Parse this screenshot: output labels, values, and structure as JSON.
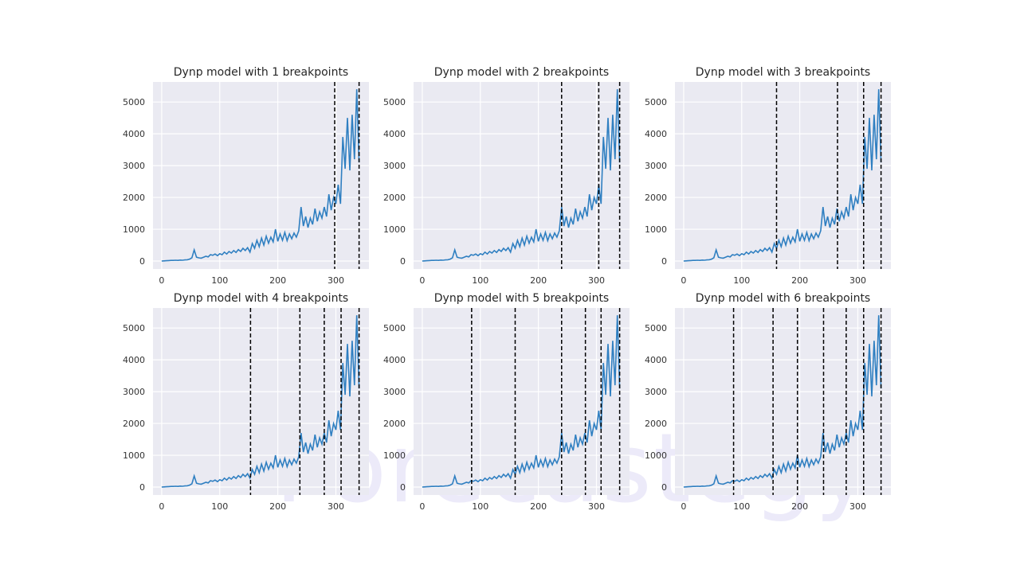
{
  "watermark": "Forecastegy",
  "chart_data": [
    {
      "type": "line",
      "title": "Dynp model with 1 breakpoints",
      "breakpoints": [
        298,
        340
      ]
    },
    {
      "type": "line",
      "title": "Dynp model with 2 breakpoints",
      "breakpoints": [
        240,
        304,
        340
      ]
    },
    {
      "type": "line",
      "title": "Dynp model with 3 breakpoints",
      "breakpoints": [
        160,
        265,
        310,
        340
      ]
    },
    {
      "type": "line",
      "title": "Dynp model with 4 breakpoints",
      "breakpoints": [
        153,
        238,
        280,
        309,
        340
      ]
    },
    {
      "type": "line",
      "title": "Dynp model with 5 breakpoints",
      "breakpoints": [
        85,
        160,
        240,
        281,
        308,
        340
      ]
    },
    {
      "type": "line",
      "title": "Dynp model with 6 breakpoints",
      "breakpoints": [
        86,
        154,
        196,
        241,
        280,
        310,
        340
      ]
    }
  ],
  "shared": {
    "x": [
      0,
      4,
      8,
      12,
      16,
      20,
      24,
      28,
      32,
      36,
      40,
      44,
      48,
      52,
      56,
      60,
      64,
      68,
      72,
      76,
      80,
      84,
      88,
      92,
      96,
      100,
      104,
      108,
      112,
      116,
      120,
      124,
      128,
      132,
      136,
      140,
      144,
      148,
      152,
      156,
      160,
      164,
      168,
      172,
      176,
      180,
      184,
      188,
      192,
      196,
      200,
      204,
      208,
      212,
      216,
      220,
      224,
      228,
      232,
      236,
      240,
      244,
      248,
      252,
      256,
      260,
      264,
      268,
      272,
      276,
      280,
      284,
      288,
      292,
      296,
      300,
      304,
      308,
      312,
      316,
      320,
      324,
      328,
      332,
      336,
      340
    ],
    "y": [
      0,
      5,
      10,
      15,
      20,
      20,
      25,
      20,
      30,
      25,
      35,
      40,
      60,
      100,
      350,
      120,
      100,
      90,
      120,
      150,
      130,
      200,
      180,
      220,
      170,
      230,
      200,
      280,
      220,
      300,
      250,
      330,
      270,
      360,
      300,
      400,
      330,
      420,
      280,
      550,
      400,
      650,
      450,
      720,
      500,
      780,
      560,
      750,
      600,
      1000,
      620,
      850,
      650,
      900,
      640,
      850,
      700,
      880,
      750,
      950,
      1700,
      1100,
      1400,
      1050,
      1350,
      1150,
      1650,
      1250,
      1550,
      1350,
      1700,
      1400,
      2100,
      1600,
      2000,
      1800,
      2400,
      1800,
      3900,
      2900,
      4500,
      2850,
      4600,
      3200,
      5400,
      3100
    ],
    "xticks": [
      0,
      100,
      200,
      300
    ],
    "yticks": [
      0,
      1000,
      2000,
      3000,
      4000,
      5000
    ],
    "xlim": [
      -15,
      357
    ],
    "ylim": [
      -250,
      5630
    ],
    "grid": true,
    "line_color": "#2f7fc1",
    "breakpoint_color": "#000000",
    "axes_bg": "#eaeaf2"
  }
}
